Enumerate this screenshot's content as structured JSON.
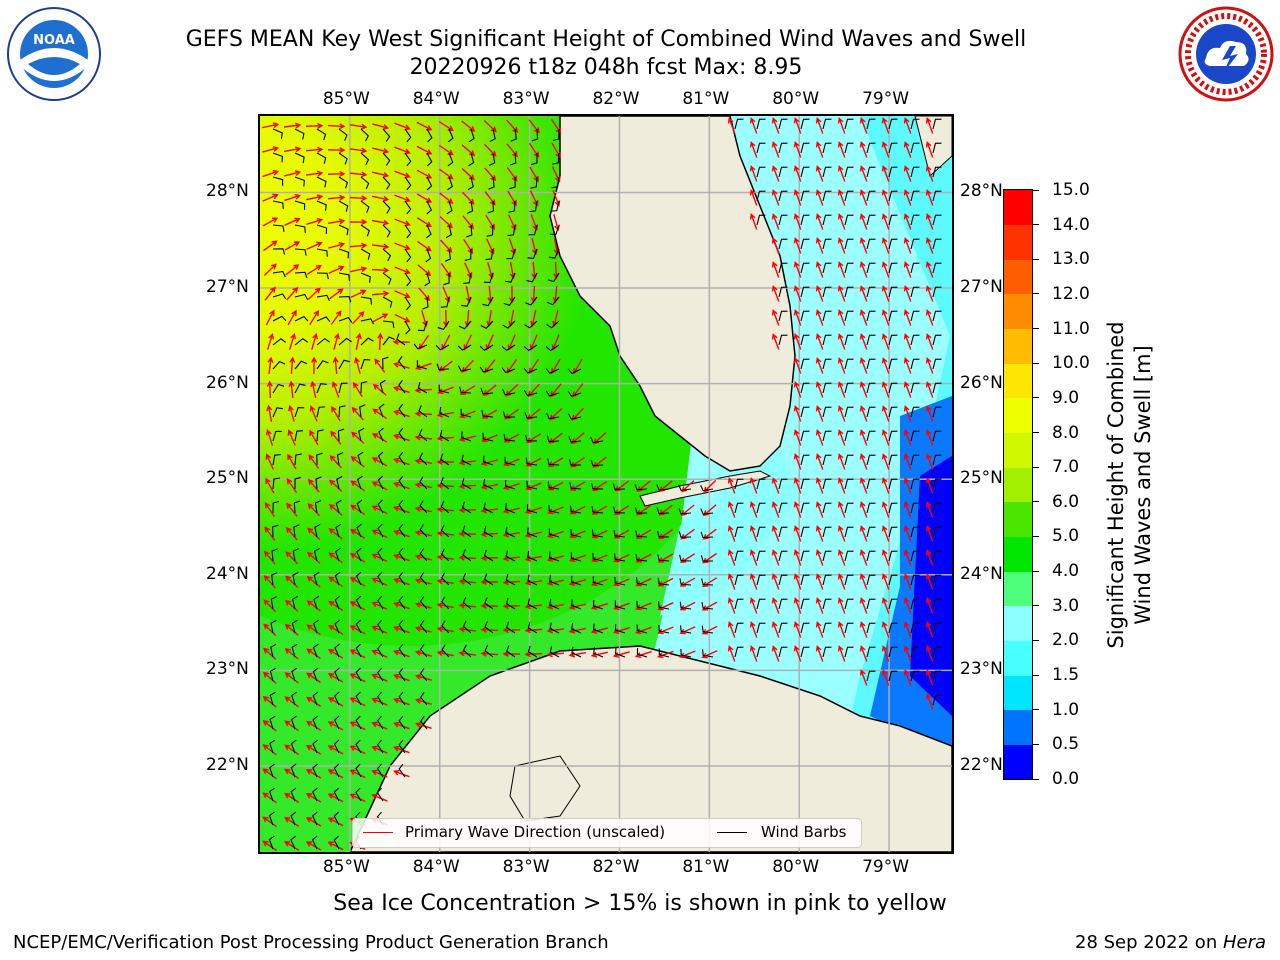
{
  "title": {
    "line1": "GEFS MEAN Key West Significant Height of Combined Wind Waves and Swell",
    "line2": "20220926 t18z 048h fcst   Max: 8.95"
  },
  "logos": {
    "left": {
      "icon": "noaa-logo-icon",
      "text": "NOAA"
    },
    "right": {
      "icon": "nws-logo-icon"
    }
  },
  "map": {
    "lon_labels": [
      "85°W",
      "84°W",
      "83°W",
      "82°W",
      "81°W",
      "80°W",
      "79°W"
    ],
    "lat_labels": [
      "28°N",
      "27°N",
      "26°N",
      "25°N",
      "24°N",
      "23°N",
      "22°N"
    ],
    "extent": {
      "lon": [
        -86.0,
        -78.3
      ],
      "lat": [
        21.1,
        28.8
      ]
    },
    "grid": true,
    "land_color": "#efecdc",
    "wave_direction_color": "#ff0000",
    "wind_barb_color": "#000000"
  },
  "colorbar": {
    "label_line1": "Significant Height of Combined",
    "label_line2": "Wind Waves and Swell [m]",
    "ticks": [
      "0.0",
      "0.5",
      "1.0",
      "1.5",
      "2.0",
      "3.0",
      "4.0",
      "5.0",
      "6.0",
      "7.0",
      "8.0",
      "9.0",
      "10.0",
      "11.0",
      "12.0",
      "13.0",
      "14.0",
      "15.0"
    ],
    "colors": [
      "#0000ff",
      "#0073ff",
      "#00e6ff",
      "#48ffff",
      "#8cffff",
      "#4dff7a",
      "#00e600",
      "#4ae600",
      "#a2f000",
      "#cff700",
      "#eeff00",
      "#ffe600",
      "#ffbb00",
      "#ff8c00",
      "#ff5e00",
      "#ff3300",
      "#ff0000"
    ]
  },
  "legend": {
    "wave_label": "Primary Wave Direction (unscaled)",
    "barb_label": "Wind Barbs"
  },
  "footer": {
    "note": "Sea Ice Concentration > 15% is shown in pink to yellow",
    "left": "NCEP/EMC/Verification Post Processing Product Generation Branch",
    "right_date": "28 Sep 2022 on ",
    "right_host": "Hera"
  }
}
